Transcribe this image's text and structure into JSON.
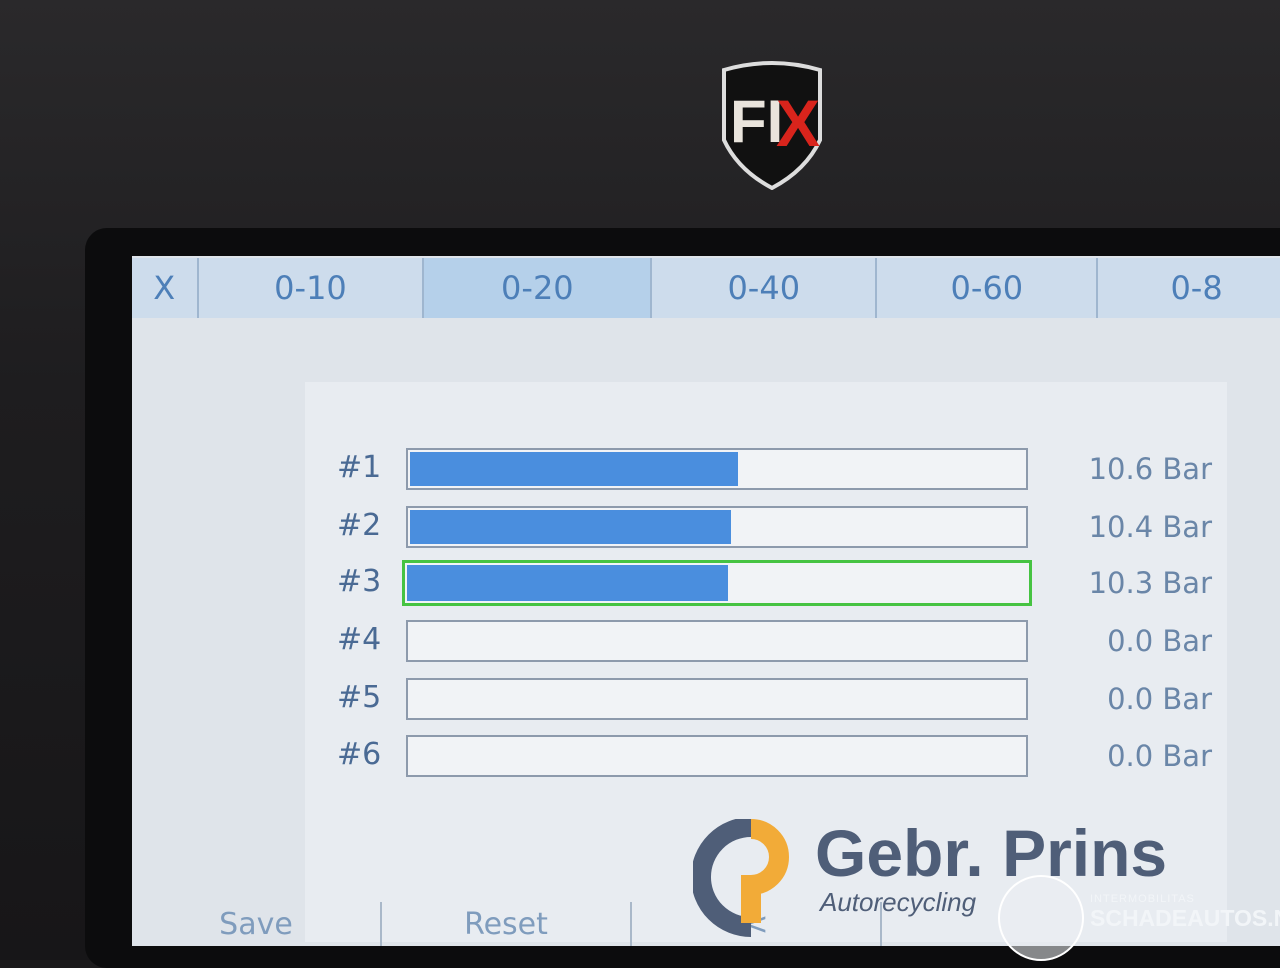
{
  "device": {
    "logo": "FIX"
  },
  "tabs": {
    "close_label": "X",
    "items": [
      {
        "label": "0-10"
      },
      {
        "label": "0-20"
      },
      {
        "label": "0-40"
      },
      {
        "label": "0-60"
      },
      {
        "label": "0-8"
      }
    ],
    "selected": "0-20"
  },
  "scale_max": 20,
  "channels": [
    {
      "label": "#1",
      "value": "10.6 Bar",
      "level": 10.6,
      "highlighted": false
    },
    {
      "label": "#2",
      "value": "10.4 Bar",
      "level": 10.4,
      "highlighted": false
    },
    {
      "label": "#3",
      "value": "10.3 Bar",
      "level": 10.3,
      "highlighted": true
    },
    {
      "label": "#4",
      "value": "0.0 Bar",
      "level": 0,
      "highlighted": false
    },
    {
      "label": "#5",
      "value": "0.0 Bar",
      "level": 0,
      "highlighted": false
    },
    {
      "label": "#6",
      "value": "0.0 Bar",
      "level": 0,
      "highlighted": false
    }
  ],
  "buttons": {
    "save": "Save",
    "reset": "Reset",
    "back": "<"
  },
  "watermarks": {
    "gebr": "Gebr. Prins",
    "autorecycling": "Autorecycling",
    "intermobilitas": "INTERMOBILITAS",
    "schadeautos": "SCHADEAUTOS.NL"
  },
  "colors": {
    "bar_fill": "#4a8ede",
    "highlight": "#46c342",
    "tab_selected": "#b5d0ea"
  }
}
